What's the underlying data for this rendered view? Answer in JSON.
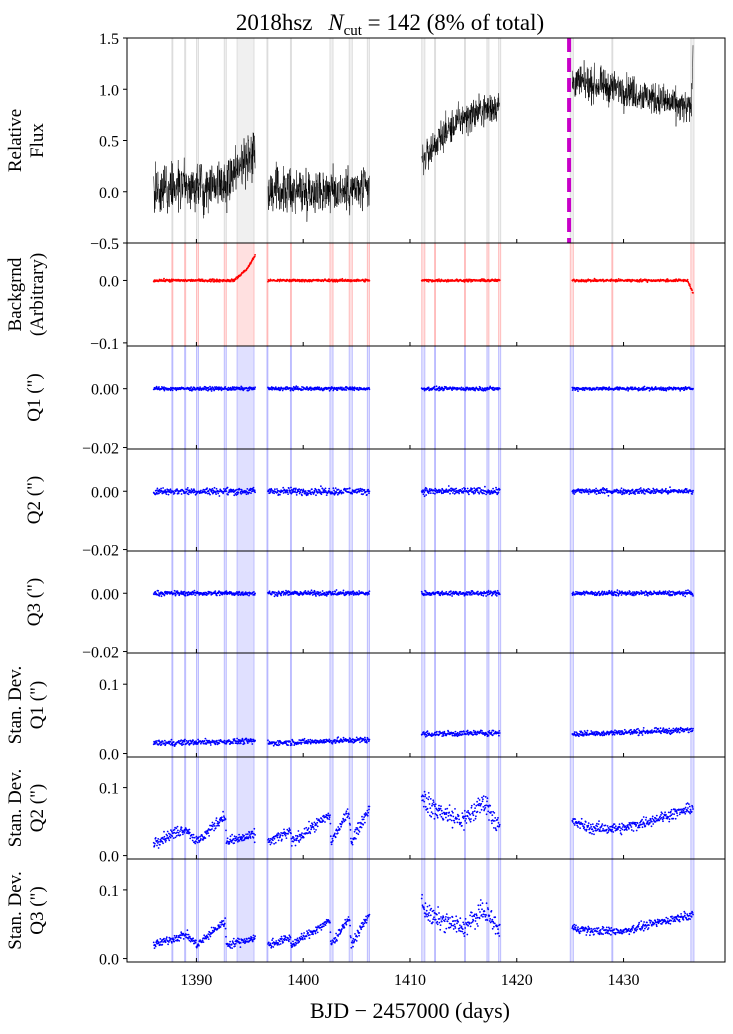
{
  "figure": {
    "title_prefix": "2018hsz",
    "title_n": "N",
    "title_sub": "cut",
    "title_suffix": " = 142 (8% of total)",
    "xlabel": "BJD − 2457000 (days)",
    "colors": {
      "flux": "#000000",
      "background": "#ff0000",
      "centroid": "#0000ff",
      "marker": "#c800c8",
      "cut_gray": "#808080",
      "cut_red": "#ff0000",
      "cut_blue": "#0000ff"
    }
  },
  "chart_data": {
    "type": "scatter",
    "x_range": [
      1383.5,
      1439.5
    ],
    "x_ticks": [
      1390,
      1400,
      1410,
      1420,
      1430
    ],
    "x_tick_labels": [
      "1390",
      "1400",
      "1410",
      "1420",
      "1430"
    ],
    "segments": [
      [
        1386.0,
        1395.5
      ],
      [
        1396.7,
        1406.2
      ],
      [
        1411.1,
        1418.4
      ],
      [
        1425.2,
        1436.5
      ]
    ],
    "marker_line_x": 1424.9,
    "cut_intervals": [
      [
        1387.7,
        1387.8
      ],
      [
        1388.9,
        1389.0
      ],
      [
        1390.0,
        1390.2
      ],
      [
        1392.6,
        1392.8
      ],
      [
        1393.8,
        1395.4
      ],
      [
        1396.6,
        1396.7
      ],
      [
        1398.8,
        1398.9
      ],
      [
        1402.5,
        1402.8
      ],
      [
        1404.3,
        1404.6
      ],
      [
        1406.0,
        1406.2
      ],
      [
        1411.1,
        1411.4
      ],
      [
        1412.3,
        1412.4
      ],
      [
        1415.1,
        1415.2
      ],
      [
        1417.2,
        1417.4
      ],
      [
        1418.3,
        1418.5
      ],
      [
        1425.0,
        1425.3
      ],
      [
        1428.9,
        1429.0
      ],
      [
        1436.3,
        1436.6
      ]
    ],
    "panels": [
      {
        "id": "flux",
        "ylabel": [
          "Relative",
          "Flux"
        ],
        "ylim": [
          -0.5,
          1.5
        ],
        "yticks": [
          -0.5,
          0.0,
          0.5,
          1.0,
          1.5
        ],
        "ytick_labels": [
          "−0.5",
          "0.0",
          "0.5",
          "1.0",
          "1.5"
        ],
        "style": "line",
        "color": "#000000",
        "cut_color": "#808080",
        "series": [
          {
            "x": [
              1386,
              1393,
              1394,
              1395.5
            ],
            "y": [
              0.0,
              0.1,
              0.25,
              0.42
            ],
            "noise": 0.12
          },
          {
            "x": [
              1396.7,
              1406.2
            ],
            "y": [
              0.0,
              0.02
            ],
            "noise": 0.11
          },
          {
            "x": [
              1411.1,
              1413,
              1415,
              1418.4
            ],
            "y": [
              0.3,
              0.55,
              0.72,
              0.85
            ],
            "noise": 0.08
          },
          {
            "x": [
              1425.2,
              1430,
              1436.3,
              1436.5
            ],
            "y": [
              1.07,
              1.0,
              0.8,
              1.25
            ],
            "noise": 0.08
          }
        ]
      },
      {
        "id": "background",
        "ylabel": [
          "Backgrnd",
          "(Arbitrary)"
        ],
        "ylim": [
          -0.105,
          0.06
        ],
        "yticks": [
          -0.1,
          0.0
        ],
        "ytick_labels": [
          "−0.1",
          "0.0"
        ],
        "style": "dots",
        "color": "#ff0000",
        "cut_color": "#ff0000",
        "series": [
          {
            "x": [
              1386,
              1393.5,
              1394.2,
              1394.8,
              1395.5
            ],
            "y": [
              0.0,
              0.0,
              0.01,
              0.02,
              0.04
            ],
            "noise": 0.001
          },
          {
            "x": [
              1396.7,
              1406.2
            ],
            "y": [
              0.0,
              0.0
            ],
            "noise": 0.001
          },
          {
            "x": [
              1411.1,
              1418.4
            ],
            "y": [
              0.0,
              0.0
            ],
            "noise": 0.001
          },
          {
            "x": [
              1425.2,
              1436.0,
              1436.5
            ],
            "y": [
              0.0,
              0.0,
              -0.02
            ],
            "noise": 0.001
          }
        ]
      },
      {
        "id": "q1",
        "ylabel": [
          "Q1 (\")"
        ],
        "ylim": [
          -0.0205,
          0.0145
        ],
        "yticks": [
          -0.02,
          0.0
        ],
        "ytick_labels": [
          "−0.02",
          "0.00"
        ],
        "style": "dots",
        "color": "#0000ff",
        "cut_color": "#0000ff",
        "series": [
          {
            "x": [
              1386,
              1395.5
            ],
            "y": [
              0.0,
              0.0
            ],
            "noise": 0.0003
          },
          {
            "x": [
              1396.7,
              1406.2
            ],
            "y": [
              0.0,
              0.0
            ],
            "noise": 0.0003
          },
          {
            "x": [
              1411.1,
              1418.4
            ],
            "y": [
              0.0,
              0.0
            ],
            "noise": 0.0003
          },
          {
            "x": [
              1425.2,
              1436.5
            ],
            "y": [
              0.0,
              0.0
            ],
            "noise": 0.0003
          }
        ]
      },
      {
        "id": "q2",
        "ylabel": [
          "Q2 (\")"
        ],
        "ylim": [
          -0.0205,
          0.0145
        ],
        "yticks": [
          -0.02,
          0.0
        ],
        "ytick_labels": [
          "−0.02",
          "0.00"
        ],
        "style": "dots",
        "color": "#0000ff",
        "cut_color": "#0000ff",
        "series": [
          {
            "x": [
              1386,
              1395.5
            ],
            "y": [
              0.0,
              0.0
            ],
            "noise": 0.0006
          },
          {
            "x": [
              1396.7,
              1406.2
            ],
            "y": [
              0.0,
              0.0
            ],
            "noise": 0.0006
          },
          {
            "x": [
              1411.1,
              1418.4
            ],
            "y": [
              0.0,
              0.0
            ],
            "noise": 0.0006
          },
          {
            "x": [
              1425.2,
              1436.5
            ],
            "y": [
              0.0,
              0.0
            ],
            "noise": 0.0005
          }
        ]
      },
      {
        "id": "q3",
        "ylabel": [
          "Q3 (\")"
        ],
        "ylim": [
          -0.0205,
          0.0145
        ],
        "yticks": [
          -0.02,
          0.0
        ],
        "ytick_labels": [
          "−0.02",
          "0.00"
        ],
        "style": "dots",
        "color": "#0000ff",
        "cut_color": "#0000ff",
        "series": [
          {
            "x": [
              1386,
              1395.5
            ],
            "y": [
              0.0,
              0.0
            ],
            "noise": 0.0004
          },
          {
            "x": [
              1396.7,
              1406.2
            ],
            "y": [
              0.0,
              0.0
            ],
            "noise": 0.0004
          },
          {
            "x": [
              1411.1,
              1418.4
            ],
            "y": [
              0.0,
              0.0
            ],
            "noise": 0.0004
          },
          {
            "x": [
              1425.2,
              1436.5
            ],
            "y": [
              0.0,
              0.0
            ],
            "noise": 0.0004
          }
        ]
      },
      {
        "id": "sd1",
        "ylabel": [
          "Stan. Dev.",
          "Q1 (\")"
        ],
        "ylim": [
          -0.005,
          0.145
        ],
        "yticks": [
          0.0,
          0.1
        ],
        "ytick_labels": [
          "0.0",
          "0.1"
        ],
        "style": "dots",
        "color": "#0000ff",
        "cut_color": "#0000ff",
        "series": [
          {
            "x": [
              1386,
              1395.5
            ],
            "y": [
              0.015,
              0.018
            ],
            "noise": 0.002
          },
          {
            "x": [
              1396.7,
              1406.2
            ],
            "y": [
              0.015,
              0.02
            ],
            "noise": 0.002
          },
          {
            "x": [
              1411.1,
              1418.4
            ],
            "y": [
              0.028,
              0.03
            ],
            "noise": 0.002
          },
          {
            "x": [
              1425.2,
              1436.5
            ],
            "y": [
              0.028,
              0.034
            ],
            "noise": 0.002
          }
        ]
      },
      {
        "id": "sd2",
        "ylabel": [
          "Stan. Dev.",
          "Q2 (\")"
        ],
        "ylim": [
          -0.005,
          0.145
        ],
        "yticks": [
          0.0,
          0.1
        ],
        "ytick_labels": [
          "0.0",
          "0.1"
        ],
        "style": "dots",
        "color": "#0000ff",
        "cut_color": "#0000ff",
        "series": [
          {
            "x": [
              1386,
              1389,
              1390.1,
              1392.7,
              1392.8,
              1395.5
            ],
            "y": [
              0.02,
              0.04,
              0.02,
              0.06,
              0.02,
              0.03
            ],
            "noise": 0.004
          },
          {
            "x": [
              1396.7,
              1398.8,
              1398.9,
              1402.5,
              1402.6,
              1404.3,
              1404.5,
              1406.2
            ],
            "y": [
              0.02,
              0.035,
              0.02,
              0.06,
              0.02,
              0.065,
              0.02,
              0.07
            ],
            "noise": 0.004
          },
          {
            "x": [
              1411.1,
              1412,
              1415,
              1417,
              1418.4
            ],
            "y": [
              0.09,
              0.07,
              0.05,
              0.08,
              0.04
            ],
            "noise": 0.008
          },
          {
            "x": [
              1425.2,
              1427,
              1430,
              1436.5
            ],
            "y": [
              0.05,
              0.04,
              0.04,
              0.07
            ],
            "noise": 0.004
          }
        ]
      },
      {
        "id": "sd3",
        "ylabel": [
          "Stan. Dev.",
          "Q3 (\")"
        ],
        "ylim": [
          -0.005,
          0.145
        ],
        "yticks": [
          0.0,
          0.1
        ],
        "ytick_labels": [
          "0.0",
          "0.1"
        ],
        "style": "dots",
        "color": "#0000ff",
        "cut_color": "#0000ff",
        "series": [
          {
            "x": [
              1386,
              1389,
              1390.1,
              1392.7,
              1392.8,
              1395.5
            ],
            "y": [
              0.02,
              0.035,
              0.02,
              0.055,
              0.02,
              0.03
            ],
            "noise": 0.003
          },
          {
            "x": [
              1396.7,
              1398.8,
              1398.9,
              1402.5,
              1402.6,
              1404.3,
              1404.5,
              1406.2
            ],
            "y": [
              0.02,
              0.03,
              0.02,
              0.055,
              0.02,
              0.06,
              0.02,
              0.065
            ],
            "noise": 0.003
          },
          {
            "x": [
              1411.1,
              1412,
              1415,
              1417,
              1418.4
            ],
            "y": [
              0.08,
              0.06,
              0.045,
              0.07,
              0.04
            ],
            "noise": 0.007
          },
          {
            "x": [
              1425.2,
              1427,
              1430,
              1436.5
            ],
            "y": [
              0.045,
              0.04,
              0.04,
              0.065
            ],
            "noise": 0.003
          }
        ]
      }
    ]
  }
}
